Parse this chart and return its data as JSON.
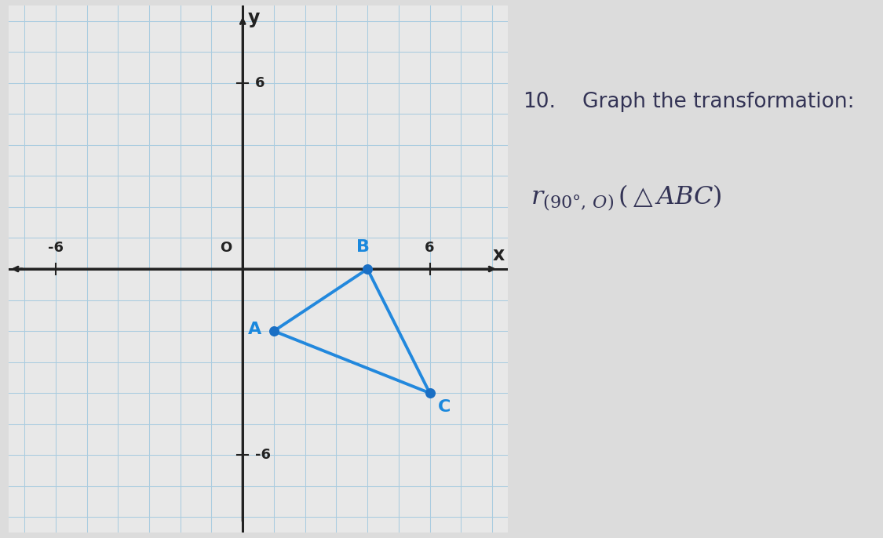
{
  "A": [
    1,
    -2
  ],
  "B": [
    4,
    0
  ],
  "C": [
    6,
    -4
  ],
  "triangle_color": "#2288dd",
  "dot_color": "#1a6fc4",
  "label_color": "#1a88dd",
  "axis_color": "#222222",
  "grid_color": "#aacce0",
  "bg_color": "#dcdcdc",
  "graph_bg": "#e8e8e8",
  "xlim": [
    -7.5,
    8.5
  ],
  "ylim": [
    -8.5,
    8.5
  ],
  "axis_label_color": "#222222",
  "right_panel_bg": "#d8d8d8",
  "text_color": "#333355",
  "number_color": "#333355",
  "title_text": "Graph the transformation:",
  "number": "10."
}
